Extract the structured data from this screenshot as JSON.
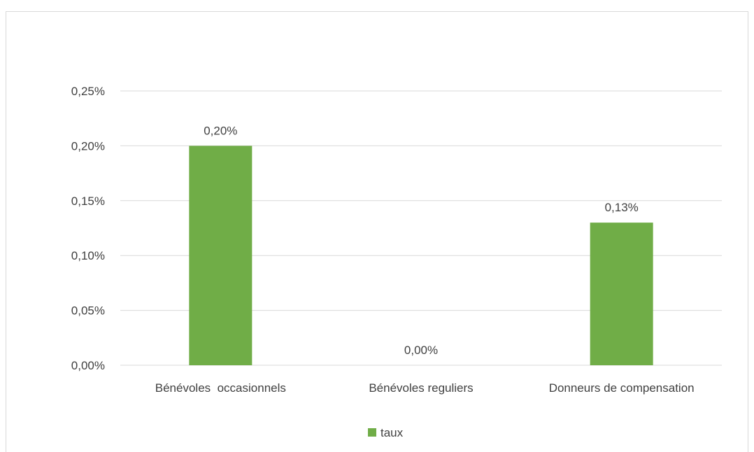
{
  "chart_data": {
    "type": "bar",
    "categories": [
      "Bénévoles  occasionnels",
      "Bénévoles reguliers",
      "Donneurs de compensation"
    ],
    "series": [
      {
        "name": "taux",
        "values": [
          0.2,
          0.0,
          0.13
        ],
        "color": "#70ad47"
      }
    ],
    "data_labels": [
      "0,20%",
      "0,00%",
      "0,13%"
    ],
    "y_ticks": [
      {
        "value": 0.0,
        "label": "0,00%"
      },
      {
        "value": 0.05,
        "label": "0,05%"
      },
      {
        "value": 0.1,
        "label": "0,10%"
      },
      {
        "value": 0.15,
        "label": "0,15%"
      },
      {
        "value": 0.2,
        "label": "0,20%"
      },
      {
        "value": 0.25,
        "label": "0,25%"
      }
    ],
    "ylim": [
      0,
      0.25
    ],
    "y_unit": "%",
    "title": "",
    "xlabel": "",
    "ylabel": "",
    "grid": true,
    "legend_position": "bottom",
    "gridline_color": "#d9d9d9"
  }
}
